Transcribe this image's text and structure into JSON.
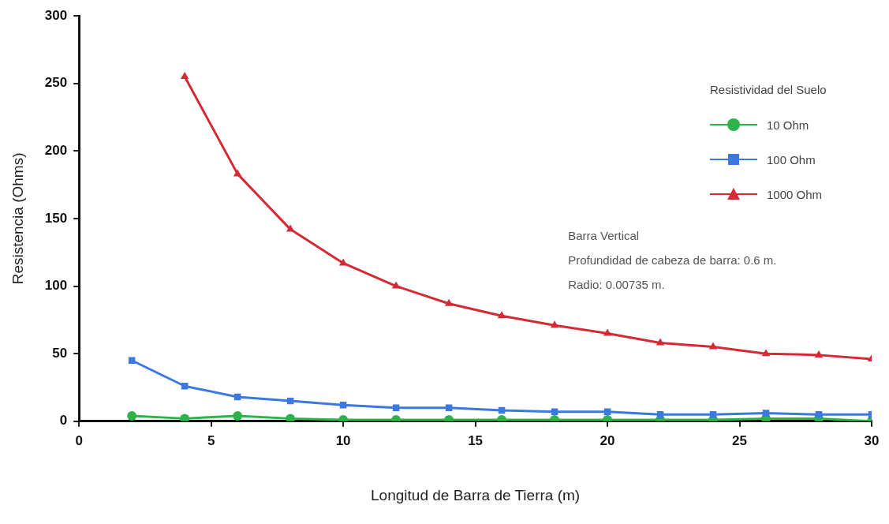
{
  "chart_data": {
    "type": "line",
    "xlabel": "Longitud de Barra de Tierra (m)",
    "ylabel": "Resistencia (Ohms)",
    "legend_title": "Resistividad del Suelo",
    "legend": "top right",
    "grid": false,
    "line_style": "solid",
    "xlim": [
      0,
      30
    ],
    "xticks": [
      0,
      5,
      10,
      15,
      20,
      25,
      30
    ],
    "ylim": [
      0,
      300
    ],
    "yticks": [
      0,
      50,
      100,
      150,
      200,
      250,
      300
    ],
    "series": [
      {
        "name": "10 Ohm",
        "color": "#2db34a",
        "marker": "circle",
        "x": [
          2,
          4,
          6,
          8,
          10,
          12,
          14,
          16,
          18,
          20,
          22,
          24,
          26,
          28,
          30
        ],
        "values": [
          4,
          2,
          4,
          2,
          1,
          1,
          1,
          1,
          1,
          1,
          1,
          1,
          2,
          2,
          0
        ]
      },
      {
        "name": "100 Ohm",
        "color": "#3b78e0",
        "marker": "square",
        "x": [
          2,
          4,
          6,
          8,
          10,
          12,
          14,
          16,
          18,
          20,
          22,
          24,
          26,
          28,
          30
        ],
        "values": [
          45,
          26,
          18,
          15,
          12,
          10,
          10,
          8,
          7,
          7,
          5,
          5,
          6,
          5,
          5
        ]
      },
      {
        "name": "1000 Ohm",
        "color": "#d42a35",
        "marker": "triangle",
        "x": [
          4,
          6,
          8,
          10,
          12,
          14,
          16,
          18,
          20,
          22,
          24,
          26,
          28,
          30
        ],
        "values": [
          255,
          183,
          142,
          117,
          100,
          87,
          78,
          71,
          65,
          58,
          55,
          50,
          49,
          46
        ]
      }
    ],
    "annotations": [
      "Barra Vertical",
      "Profundidad de cabeza de barra: 0.6 m.",
      "Radio: 0.00735 m."
    ]
  }
}
